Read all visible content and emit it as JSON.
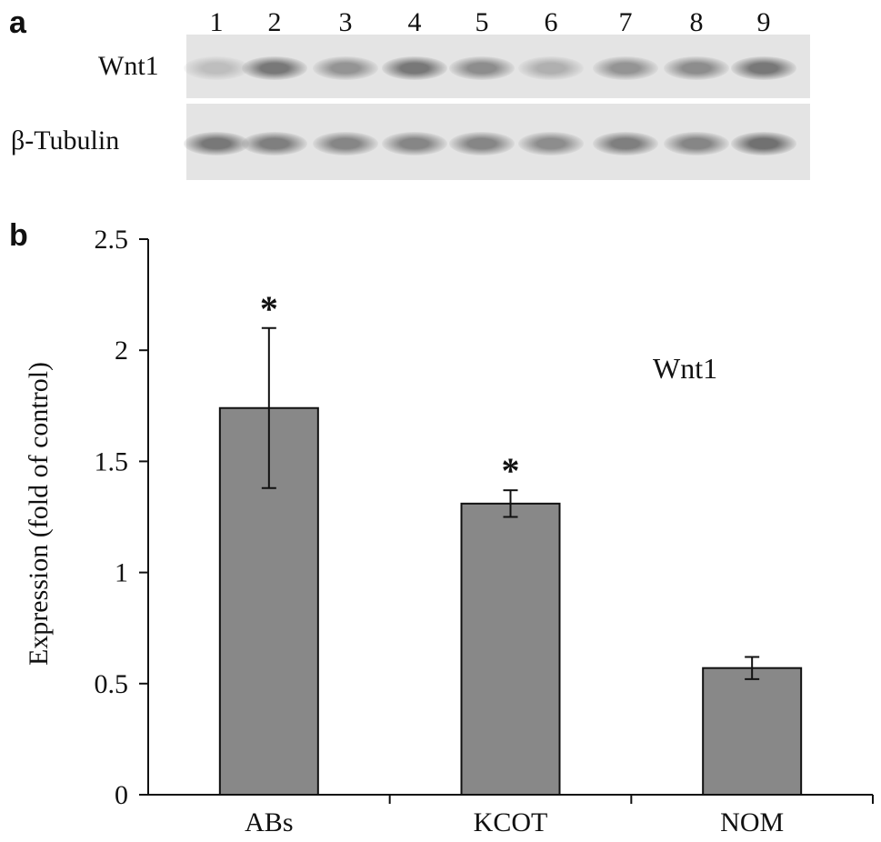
{
  "panel_a": {
    "letter": "a",
    "lanes": [
      "1",
      "2",
      "3",
      "4",
      "5",
      "6",
      "7",
      "8",
      "9"
    ],
    "rows": [
      {
        "label": "Wnt1",
        "intensity": [
          0.25,
          0.75,
          0.55,
          0.75,
          0.6,
          0.35,
          0.55,
          0.6,
          0.75
        ]
      },
      {
        "label": "β-Tubulin",
        "intensity": [
          0.75,
          0.7,
          0.65,
          0.65,
          0.65,
          0.6,
          0.7,
          0.65,
          0.8
        ]
      }
    ]
  },
  "panel_b": {
    "letter": "b",
    "annotation": "Wnt1"
  },
  "chart_data": {
    "type": "bar",
    "categories": [
      "ABs",
      "KCOT",
      "NOM"
    ],
    "values": [
      1.74,
      1.31,
      0.57
    ],
    "errors": [
      0.36,
      0.06,
      0.05
    ],
    "significance": [
      "*",
      "*",
      ""
    ],
    "ylabel": "Expression (fold of control)",
    "xlabel": "",
    "ylim": [
      0,
      2.5
    ],
    "yticks": [
      0,
      0.5,
      1,
      1.5,
      2,
      2.5
    ],
    "ytick_labels": [
      "0",
      "0.5",
      "1",
      "1.5",
      "2",
      "2.5"
    ],
    "bar_color": "#888888",
    "grid": false
  }
}
